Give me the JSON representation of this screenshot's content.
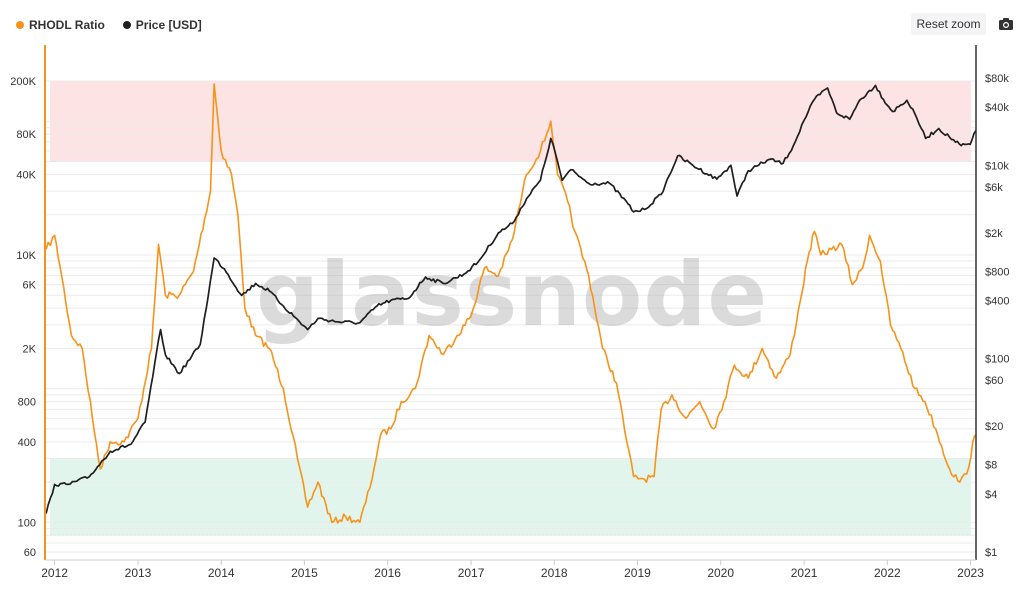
{
  "legend": {
    "rhodl_label": "RHODL Ratio",
    "price_label": "Price [USD]"
  },
  "toolbar": {
    "reset_zoom": "Reset zoom",
    "camera_icon": "camera-icon"
  },
  "watermark": "glassnode",
  "colors": {
    "rhodl": "#f7931a",
    "price": "#1f1f1f",
    "top_band": "#fde3e3",
    "bottom_band": "#e2f5ec",
    "grid": "#ebebeb"
  },
  "chart_data": {
    "type": "line",
    "title": "",
    "xlabel": "",
    "x_ticks": [
      "2012",
      "2013",
      "2014",
      "2015",
      "2016",
      "2017",
      "2018",
      "2019",
      "2020",
      "2021",
      "2022",
      "2023"
    ],
    "x_range": [
      "2011-11-20",
      "2023-01-25"
    ],
    "left_axis": {
      "scale": "log",
      "ticks": [
        {
          "value": 60,
          "label": "60"
        },
        {
          "value": 100,
          "label": "100"
        },
        {
          "value": 400,
          "label": "400"
        },
        {
          "value": 800,
          "label": "800"
        },
        {
          "value": 2000,
          "label": "2K"
        },
        {
          "value": 6000,
          "label": "6K"
        },
        {
          "value": 10000,
          "label": "10K"
        },
        {
          "value": 40000,
          "label": "40K"
        },
        {
          "value": 80000,
          "label": "80K"
        },
        {
          "value": 200000,
          "label": "200K"
        }
      ]
    },
    "right_axis": {
      "scale": "log",
      "ticks": [
        {
          "value": 1,
          "label": "$1"
        },
        {
          "value": 4,
          "label": "$4"
        },
        {
          "value": 8,
          "label": "$8"
        },
        {
          "value": 20,
          "label": "$20"
        },
        {
          "value": 60,
          "label": "$60"
        },
        {
          "value": 100,
          "label": "$100"
        },
        {
          "value": 400,
          "label": "$400"
        },
        {
          "value": 800,
          "label": "$800"
        },
        {
          "value": 2000,
          "label": "$2k"
        },
        {
          "value": 6000,
          "label": "$6k"
        },
        {
          "value": 10000,
          "label": "$10k"
        },
        {
          "value": 40000,
          "label": "$40k"
        },
        {
          "value": 80000,
          "label": "$80k"
        }
      ]
    },
    "bands": [
      {
        "name": "top",
        "from": 50000,
        "to": 200000,
        "axis": "left"
      },
      {
        "name": "bottom",
        "from": 80,
        "to": 300,
        "axis": "left"
      }
    ],
    "series": [
      {
        "name": "RHODL Ratio",
        "axis": "left",
        "points": [
          [
            "2011-11-25",
            11000
          ],
          [
            "2012-01-01",
            14000
          ],
          [
            "2012-02-01",
            7000
          ],
          [
            "2012-03-15",
            2500
          ],
          [
            "2012-05-01",
            2000
          ],
          [
            "2012-06-15",
            600
          ],
          [
            "2012-07-20",
            250
          ],
          [
            "2012-09-01",
            400
          ],
          [
            "2012-11-01",
            400
          ],
          [
            "2013-01-01",
            600
          ],
          [
            "2013-03-01",
            2000
          ],
          [
            "2013-04-01",
            12000
          ],
          [
            "2013-05-01",
            5000
          ],
          [
            "2013-07-01",
            5000
          ],
          [
            "2013-09-01",
            7500
          ],
          [
            "2013-11-15",
            30000
          ],
          [
            "2013-12-01",
            190000
          ],
          [
            "2014-01-01",
            60000
          ],
          [
            "2014-02-15",
            40000
          ],
          [
            "2014-03-15",
            20000
          ],
          [
            "2014-04-15",
            4000
          ],
          [
            "2014-06-01",
            2500
          ],
          [
            "2014-08-01",
            2000
          ],
          [
            "2014-10-01",
            1000
          ],
          [
            "2014-12-01",
            300
          ],
          [
            "2015-01-15",
            130
          ],
          [
            "2015-03-01",
            200
          ],
          [
            "2015-05-01",
            100
          ],
          [
            "2015-07-01",
            110
          ],
          [
            "2015-09-01",
            100
          ],
          [
            "2015-10-15",
            180
          ],
          [
            "2015-12-01",
            450
          ],
          [
            "2016-01-15",
            500
          ],
          [
            "2016-03-01",
            800
          ],
          [
            "2016-05-01",
            1000
          ],
          [
            "2016-07-01",
            2500
          ],
          [
            "2016-09-01",
            1800
          ],
          [
            "2016-11-01",
            2500
          ],
          [
            "2017-01-01",
            3500
          ],
          [
            "2017-03-01",
            8000
          ],
          [
            "2017-05-01",
            7000
          ],
          [
            "2017-07-01",
            13000
          ],
          [
            "2017-09-01",
            40000
          ],
          [
            "2017-11-01",
            60000
          ],
          [
            "2017-12-17",
            100000
          ],
          [
            "2018-01-15",
            40000
          ],
          [
            "2018-03-01",
            25000
          ],
          [
            "2018-04-01",
            15000
          ],
          [
            "2018-06-01",
            7000
          ],
          [
            "2018-08-01",
            2000
          ],
          [
            "2018-10-01",
            1100
          ],
          [
            "2018-11-15",
            400
          ],
          [
            "2018-12-15",
            220
          ],
          [
            "2019-02-01",
            210
          ],
          [
            "2019-03-15",
            220
          ],
          [
            "2019-04-15",
            700
          ],
          [
            "2019-06-01",
            900
          ],
          [
            "2019-08-01",
            600
          ],
          [
            "2019-10-01",
            800
          ],
          [
            "2019-12-01",
            500
          ],
          [
            "2020-01-15",
            800
          ],
          [
            "2020-03-01",
            1500
          ],
          [
            "2020-05-01",
            1200
          ],
          [
            "2020-07-01",
            2000
          ],
          [
            "2020-09-01",
            1200
          ],
          [
            "2020-11-01",
            1800
          ],
          [
            "2020-12-15",
            4500
          ],
          [
            "2021-01-15",
            9000
          ],
          [
            "2021-02-15",
            15000
          ],
          [
            "2021-03-15",
            10000
          ],
          [
            "2021-05-01",
            11000
          ],
          [
            "2021-06-15",
            12000
          ],
          [
            "2021-08-01",
            6000
          ],
          [
            "2021-09-15",
            8000
          ],
          [
            "2021-10-15",
            14000
          ],
          [
            "2021-12-01",
            9000
          ],
          [
            "2022-01-15",
            3000
          ],
          [
            "2022-03-01",
            2000
          ],
          [
            "2022-05-01",
            1000
          ],
          [
            "2022-06-15",
            800
          ],
          [
            "2022-08-01",
            500
          ],
          [
            "2022-10-01",
            250
          ],
          [
            "2022-11-15",
            200
          ],
          [
            "2022-12-15",
            230
          ],
          [
            "2023-01-20",
            450
          ]
        ]
      },
      {
        "name": "Price [USD]",
        "axis": "right",
        "points": [
          [
            "2011-11-25",
            2.5
          ],
          [
            "2012-01-01",
            5
          ],
          [
            "2012-03-01",
            5
          ],
          [
            "2012-06-01",
            6
          ],
          [
            "2012-09-01",
            11
          ],
          [
            "2012-12-01",
            13
          ],
          [
            "2013-02-01",
            22
          ],
          [
            "2013-04-10",
            200
          ],
          [
            "2013-05-01",
            110
          ],
          [
            "2013-07-01",
            70
          ],
          [
            "2013-10-01",
            140
          ],
          [
            "2013-12-01",
            1100
          ],
          [
            "2014-01-15",
            850
          ],
          [
            "2014-04-01",
            450
          ],
          [
            "2014-06-01",
            600
          ],
          [
            "2014-08-01",
            500
          ],
          [
            "2014-10-01",
            350
          ],
          [
            "2015-01-15",
            200
          ],
          [
            "2015-03-01",
            260
          ],
          [
            "2015-06-01",
            240
          ],
          [
            "2015-09-01",
            235
          ],
          [
            "2015-11-15",
            350
          ],
          [
            "2016-01-15",
            400
          ],
          [
            "2016-04-01",
            420
          ],
          [
            "2016-06-15",
            700
          ],
          [
            "2016-09-01",
            600
          ],
          [
            "2016-12-01",
            750
          ],
          [
            "2017-02-01",
            1000
          ],
          [
            "2017-05-01",
            2000
          ],
          [
            "2017-07-01",
            2500
          ],
          [
            "2017-09-01",
            4500
          ],
          [
            "2017-11-01",
            7000
          ],
          [
            "2017-12-17",
            19000
          ],
          [
            "2018-01-15",
            11000
          ],
          [
            "2018-02-05",
            7000
          ],
          [
            "2018-03-15",
            9000
          ],
          [
            "2018-06-01",
            6500
          ],
          [
            "2018-09-01",
            6500
          ],
          [
            "2018-11-20",
            4000
          ],
          [
            "2018-12-15",
            3300
          ],
          [
            "2019-02-01",
            3500
          ],
          [
            "2019-04-15",
            5000
          ],
          [
            "2019-06-26",
            12500
          ],
          [
            "2019-09-01",
            10000
          ],
          [
            "2019-12-15",
            7200
          ],
          [
            "2020-02-15",
            10000
          ],
          [
            "2020-03-13",
            4800
          ],
          [
            "2020-05-01",
            8800
          ],
          [
            "2020-08-01",
            11500
          ],
          [
            "2020-10-01",
            10500
          ],
          [
            "2020-11-15",
            16000
          ],
          [
            "2020-12-31",
            29000
          ],
          [
            "2021-02-15",
            48000
          ],
          [
            "2021-04-14",
            63000
          ],
          [
            "2021-05-23",
            35000
          ],
          [
            "2021-07-20",
            30000
          ],
          [
            "2021-09-01",
            47000
          ],
          [
            "2021-11-10",
            67000
          ],
          [
            "2021-12-15",
            48000
          ],
          [
            "2022-01-24",
            36000
          ],
          [
            "2022-03-28",
            47000
          ],
          [
            "2022-05-10",
            31000
          ],
          [
            "2022-06-18",
            19000
          ],
          [
            "2022-08-15",
            24000
          ],
          [
            "2022-10-01",
            19500
          ],
          [
            "2022-11-21",
            16000
          ],
          [
            "2022-12-31",
            16500
          ],
          [
            "2023-01-25",
            23000
          ]
        ]
      }
    ]
  }
}
